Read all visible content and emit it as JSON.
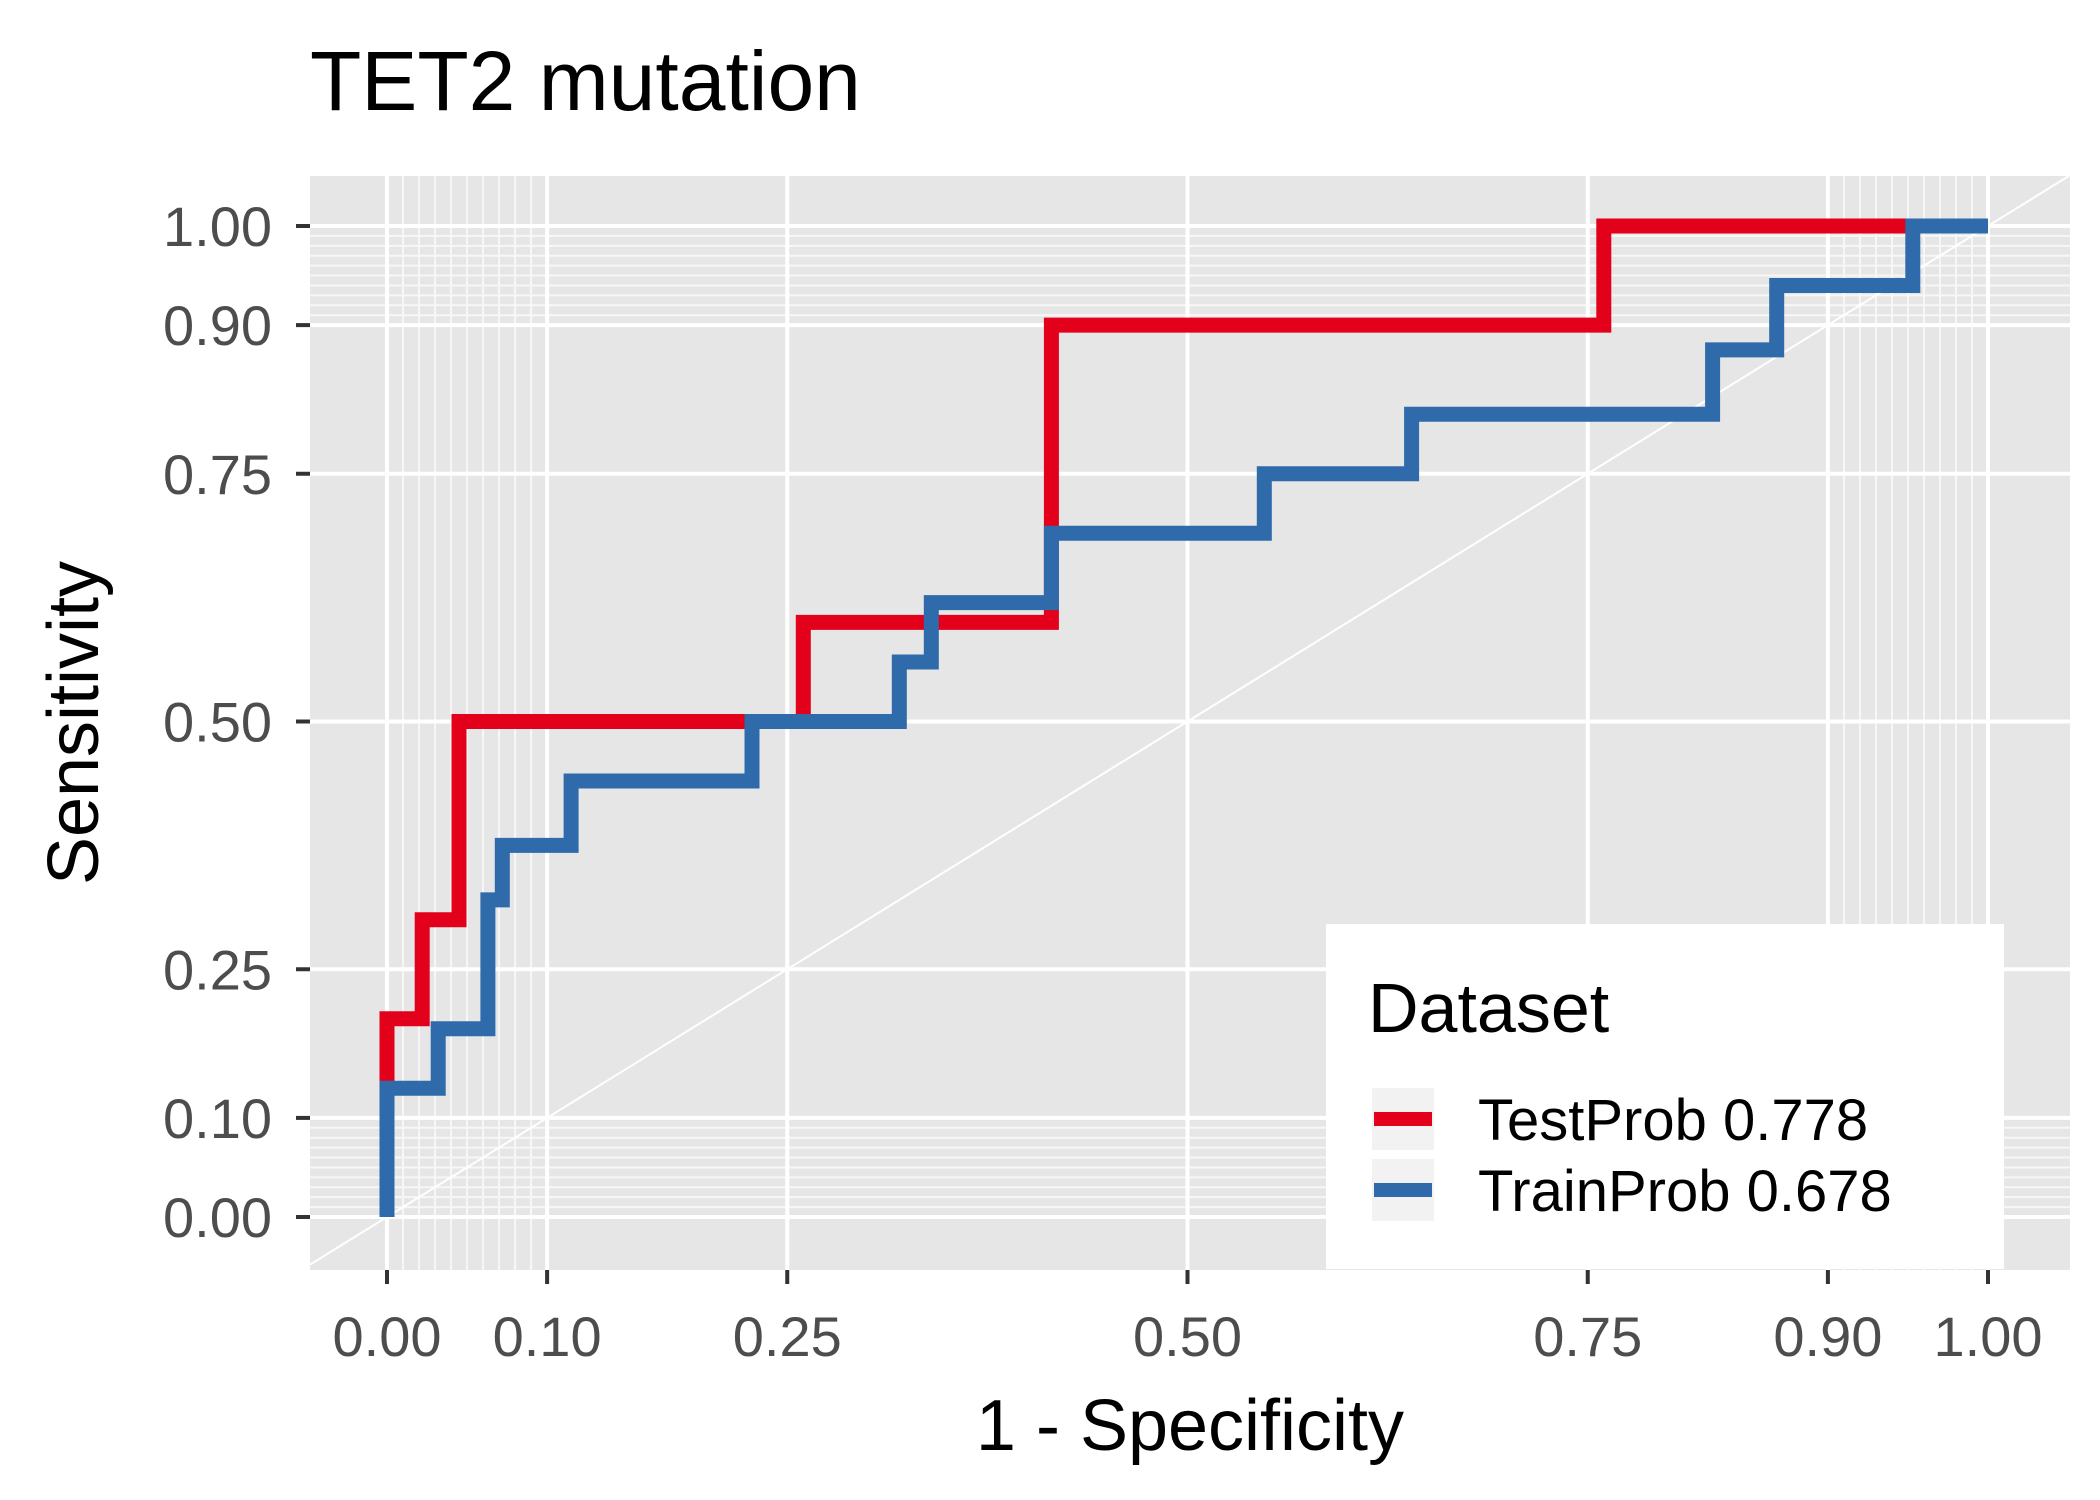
{
  "chart_data": {
    "type": "line",
    "title": "TET2 mutation",
    "xlabel": "1 - Specificity",
    "ylabel": "Sensitivity",
    "xlim": [
      0,
      1
    ],
    "ylim": [
      0,
      1
    ],
    "x_ticks": [
      "0.00",
      "0.10",
      "0.25",
      "0.50",
      "0.75",
      "0.90",
      "1.00"
    ],
    "y_ticks": [
      "0.00",
      "0.10",
      "0.25",
      "0.50",
      "0.75",
      "0.90",
      "1.00"
    ],
    "grid": true,
    "diagonal_reference": true,
    "legend": {
      "title": "Dataset",
      "position": "bottom-right"
    },
    "series": [
      {
        "name": "TestProb 0.778",
        "color": "#e3001b",
        "x": [
          0.0,
          0.0,
          0.022,
          0.022,
          0.045,
          0.045,
          0.26,
          0.26,
          0.415,
          0.415,
          0.76,
          0.76,
          1.0
        ],
        "y": [
          0.0,
          0.2,
          0.2,
          0.3,
          0.3,
          0.5,
          0.5,
          0.6,
          0.6,
          0.9,
          0.9,
          1.0,
          1.0
        ]
      },
      {
        "name": "TrainProb 0.678",
        "color": "#2f6aaa",
        "x": [
          0.0,
          0.0,
          0.032,
          0.032,
          0.063,
          0.063,
          0.072,
          0.072,
          0.115,
          0.115,
          0.228,
          0.228,
          0.32,
          0.32,
          0.34,
          0.34,
          0.415,
          0.415,
          0.548,
          0.548,
          0.64,
          0.64,
          0.828,
          0.828,
          0.868,
          0.868,
          0.953,
          0.953,
          1.0
        ],
        "y": [
          0.0,
          0.13,
          0.13,
          0.19,
          0.19,
          0.32,
          0.32,
          0.375,
          0.375,
          0.44,
          0.44,
          0.5,
          0.5,
          0.56,
          0.56,
          0.62,
          0.62,
          0.69,
          0.69,
          0.75,
          0.75,
          0.81,
          0.81,
          0.875,
          0.875,
          0.94,
          0.94,
          1.0,
          1.0
        ]
      }
    ]
  }
}
